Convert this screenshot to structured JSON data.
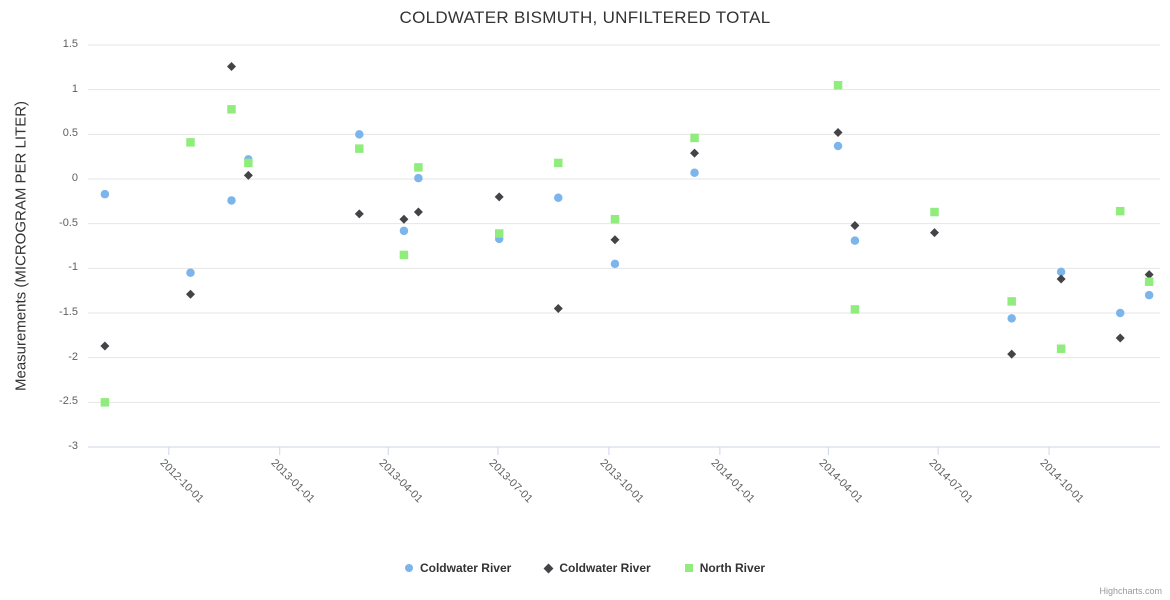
{
  "credits_label": "Highcharts.com",
  "colors": {
    "grid": "#e6e6e6",
    "axis_line": "#ccd6eb",
    "tick_mark": "#ccd6eb",
    "tick_label": "#606060",
    "title_text": "#333333",
    "legend_text": "#333333",
    "credits_text": "#999999"
  },
  "chart_data": {
    "type": "scatter",
    "title": "COLDWATER BISMUTH, UNFILTERED TOTAL",
    "xlabel": "",
    "ylabel": "Measurements (MICROGRAM PER LITER)",
    "ylim": [
      -3,
      1.5
    ],
    "y_ticks": [
      1.5,
      1,
      0.5,
      0,
      -0.5,
      -1,
      -1.5,
      -2,
      -2.5,
      -3
    ],
    "x_ticks": [
      "2012-10-01",
      "2013-01-01",
      "2013-04-01",
      "2013-07-01",
      "2013-10-01",
      "2014-01-01",
      "2014-04-01",
      "2014-07-01",
      "2014-10-01"
    ],
    "x_range": [
      "2012-07-26",
      "2015-01-01"
    ],
    "grid": true,
    "legend_position": "bottom",
    "series": [
      {
        "name": "Coldwater River",
        "color": "#7cb5ec",
        "marker": "circle",
        "data": [
          [
            "2012-08-09",
            -0.17
          ],
          [
            "2012-10-19",
            -1.05
          ],
          [
            "2012-11-22",
            -0.24
          ],
          [
            "2012-12-06",
            0.22
          ],
          [
            "2013-03-08",
            0.5
          ],
          [
            "2013-04-14",
            -0.58
          ],
          [
            "2013-04-26",
            0.01
          ],
          [
            "2013-07-02",
            -0.67
          ],
          [
            "2013-08-20",
            -0.21
          ],
          [
            "2013-10-06",
            -0.95
          ],
          [
            "2013-12-11",
            0.07
          ],
          [
            "2014-04-09",
            0.37
          ],
          [
            "2014-04-23",
            -0.69
          ],
          [
            "2014-08-31",
            -1.56
          ],
          [
            "2014-10-11",
            -1.04
          ],
          [
            "2014-11-29",
            -1.5
          ],
          [
            "2014-12-23",
            -1.3
          ]
        ]
      },
      {
        "name": "Coldwater River",
        "color": "#434348",
        "marker": "diamond",
        "data": [
          [
            "2012-08-09",
            -1.87
          ],
          [
            "2012-10-19",
            -1.29
          ],
          [
            "2012-11-22",
            1.26
          ],
          [
            "2012-12-06",
            0.04
          ],
          [
            "2013-03-08",
            -0.39
          ],
          [
            "2013-04-14",
            -0.45
          ],
          [
            "2013-04-26",
            -0.37
          ],
          [
            "2013-07-02",
            -0.2
          ],
          [
            "2013-08-20",
            -1.45
          ],
          [
            "2013-10-06",
            -0.68
          ],
          [
            "2013-12-11",
            0.29
          ],
          [
            "2014-04-09",
            0.52
          ],
          [
            "2014-04-23",
            -0.52
          ],
          [
            "2014-06-28",
            -0.6
          ],
          [
            "2014-08-31",
            -1.96
          ],
          [
            "2014-10-11",
            -1.12
          ],
          [
            "2014-11-29",
            -1.78
          ],
          [
            "2014-12-23",
            -1.07
          ]
        ]
      },
      {
        "name": "North River",
        "color": "#90ed7d",
        "marker": "square",
        "data": [
          [
            "2012-08-09",
            -2.5
          ],
          [
            "2012-10-19",
            0.41
          ],
          [
            "2012-11-22",
            0.78
          ],
          [
            "2012-12-06",
            0.18
          ],
          [
            "2013-03-08",
            0.34
          ],
          [
            "2013-04-14",
            -0.85
          ],
          [
            "2013-04-26",
            0.13
          ],
          [
            "2013-07-02",
            -0.61
          ],
          [
            "2013-08-20",
            0.18
          ],
          [
            "2013-10-06",
            -0.45
          ],
          [
            "2013-12-11",
            0.46
          ],
          [
            "2014-04-09",
            1.05
          ],
          [
            "2014-04-23",
            -1.46
          ],
          [
            "2014-06-28",
            -0.37
          ],
          [
            "2014-08-31",
            -1.37
          ],
          [
            "2014-10-11",
            -1.9
          ],
          [
            "2014-11-29",
            -0.36
          ],
          [
            "2014-12-23",
            -1.15
          ]
        ]
      }
    ]
  }
}
